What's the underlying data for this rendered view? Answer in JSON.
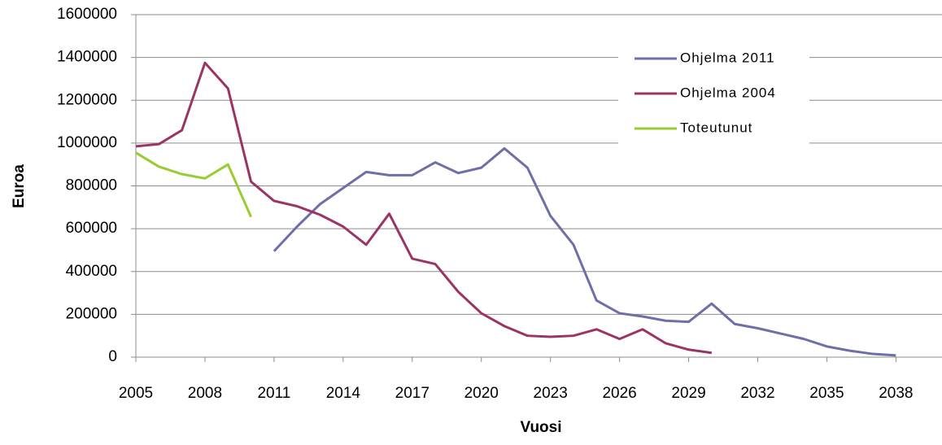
{
  "chart_data": {
    "type": "line",
    "x_label": "Vuosi",
    "y_label": "Euroa",
    "x": [
      2005,
      2006,
      2007,
      2008,
      2009,
      2010,
      2011,
      2012,
      2013,
      2014,
      2015,
      2016,
      2017,
      2018,
      2019,
      2020,
      2021,
      2022,
      2023,
      2024,
      2025,
      2026,
      2027,
      2028,
      2029,
      2030,
      2031,
      2032,
      2033,
      2034,
      2035,
      2036,
      2037,
      2038
    ],
    "series": [
      {
        "name": "Ohjelma 2011",
        "color": "#6e6fa8",
        "values": [
          null,
          null,
          null,
          null,
          null,
          null,
          495000,
          610000,
          715000,
          790000,
          865000,
          850000,
          850000,
          910000,
          860000,
          885000,
          975000,
          885000,
          660000,
          525000,
          265000,
          205000,
          190000,
          170000,
          165000,
          250000,
          155000,
          135000,
          110000,
          85000,
          50000,
          30000,
          15000,
          8000
        ]
      },
      {
        "name": "Ohjelma 2004",
        "color": "#9b3466",
        "values": [
          985000,
          995000,
          1060000,
          1375000,
          1255000,
          820000,
          730000,
          705000,
          665000,
          610000,
          525000,
          670000,
          460000,
          435000,
          305000,
          205000,
          145000,
          100000,
          95000,
          100000,
          130000,
          85000,
          130000,
          65000,
          35000,
          20000,
          null,
          null,
          null,
          null,
          null,
          null,
          null,
          null
        ]
      },
      {
        "name": "Toteutunut",
        "color": "#99cc33",
        "values": [
          955000,
          890000,
          855000,
          835000,
          900000,
          655000,
          null,
          null,
          null,
          null,
          null,
          null,
          null,
          null,
          null,
          null,
          null,
          null,
          null,
          null,
          null,
          null,
          null,
          null,
          null,
          null,
          null,
          null,
          null,
          null,
          null,
          null,
          null,
          null
        ]
      }
    ],
    "xlim": [
      2005,
      2040
    ],
    "xticks": [
      2005,
      2008,
      2011,
      2014,
      2017,
      2020,
      2023,
      2026,
      2029,
      2032,
      2035,
      2038
    ],
    "ylim": [
      0,
      1600000
    ],
    "yticks": [
      0,
      200000,
      400000,
      600000,
      800000,
      1000000,
      1200000,
      1400000,
      1600000
    ],
    "grid": true,
    "legend": "upper right"
  }
}
